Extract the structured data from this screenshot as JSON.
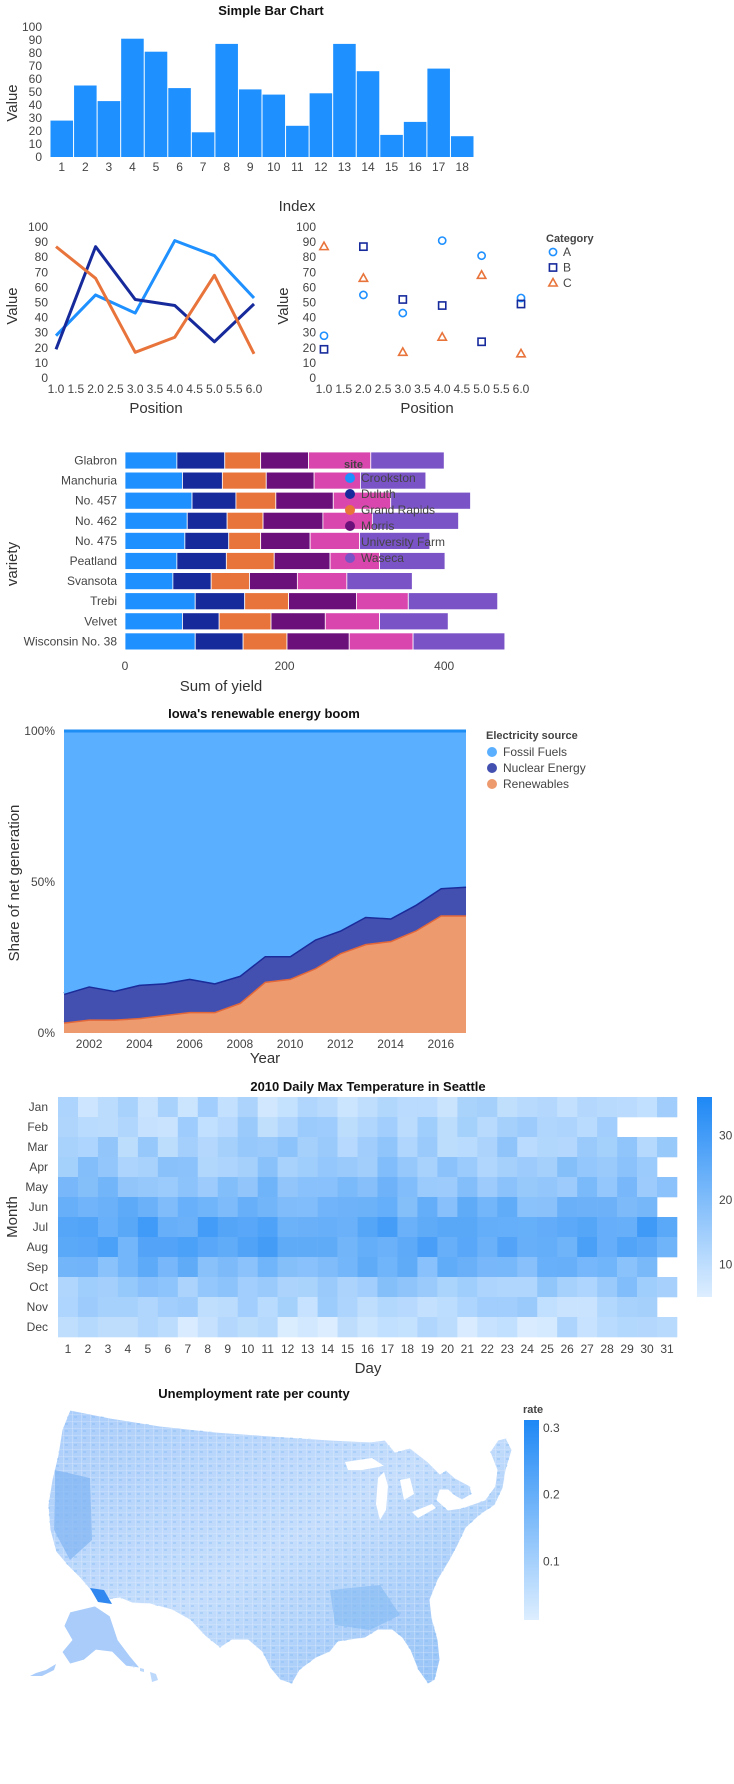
{
  "colors": {
    "primary": "#1e90ff",
    "navy": "#172a9c",
    "orange": "#e8743b",
    "purple": "#6b0f7a",
    "pink": "#d946ad",
    "violet": "#7a53c7",
    "lightblue": "#5aafff",
    "indigo": "#4450b0",
    "salmon": "#ee9a6f"
  },
  "chart_data": [
    {
      "id": "bar",
      "type": "bar",
      "title": "Simple Bar Chart",
      "xlabel": "Index",
      "ylabel": "Value",
      "ylim": [
        0,
        100
      ],
      "yticks": [
        "0",
        "10",
        "20",
        "30",
        "40",
        "50",
        "60",
        "70",
        "80",
        "90",
        "100"
      ],
      "categories": [
        "1",
        "2",
        "3",
        "4",
        "5",
        "6",
        "7",
        "8",
        "9",
        "10",
        "11",
        "12",
        "13",
        "14",
        "15",
        "16",
        "17",
        "18"
      ],
      "values": [
        28,
        55,
        43,
        91,
        81,
        53,
        19,
        87,
        52,
        48,
        24,
        49,
        87,
        66,
        17,
        27,
        68,
        16
      ]
    },
    {
      "id": "line",
      "type": "line",
      "xlabel": "Position",
      "ylabel": "Value",
      "ylim": [
        0,
        100
      ],
      "xlim": [
        1.0,
        6.0
      ],
      "xticks": [
        "1.0",
        "1.5",
        "2.0",
        "2.5",
        "3.0",
        "3.5",
        "4.0",
        "4.5",
        "5.0",
        "5.5",
        "6.0"
      ],
      "yticks": [
        "0",
        "10",
        "20",
        "30",
        "40",
        "50",
        "60",
        "70",
        "80",
        "90",
        "100"
      ],
      "x": [
        1,
        2,
        3,
        4,
        5,
        6
      ],
      "series": [
        {
          "color_key": "primary",
          "values": [
            28,
            55,
            43,
            91,
            81,
            53
          ]
        },
        {
          "color_key": "navy",
          "values": [
            19,
            87,
            52,
            48,
            24,
            49
          ]
        },
        {
          "color_key": "orange",
          "values": [
            87,
            66,
            17,
            27,
            68,
            16
          ]
        }
      ]
    },
    {
      "id": "scatter",
      "type": "scatter",
      "xlabel": "Position",
      "ylabel": "Value",
      "ylim": [
        0,
        100
      ],
      "xlim": [
        1.0,
        6.0
      ],
      "xticks": [
        "1.0",
        "1.5",
        "2.0",
        "2.5",
        "3.0",
        "3.5",
        "4.0",
        "4.5",
        "5.0",
        "5.5",
        "6.0"
      ],
      "yticks": [
        "0",
        "10",
        "20",
        "30",
        "40",
        "50",
        "60",
        "70",
        "80",
        "90",
        "100"
      ],
      "legend_title": "Category",
      "legend_position": "top-right",
      "x": [
        1,
        2,
        3,
        4,
        5,
        6
      ],
      "series": [
        {
          "name": "A",
          "shape": "circle",
          "color_key": "primary",
          "values": [
            28,
            55,
            43,
            91,
            81,
            53
          ]
        },
        {
          "name": "B",
          "shape": "square",
          "color_key": "navy",
          "values": [
            19,
            87,
            52,
            48,
            24,
            49
          ]
        },
        {
          "name": "C",
          "shape": "triangle",
          "color_key": "orange",
          "values": [
            87,
            66,
            17,
            27,
            68,
            16
          ]
        }
      ]
    },
    {
      "id": "stacked",
      "type": "bar",
      "orientation": "horizontal-stacked",
      "xlabel": "Sum of yield",
      "ylabel": "variety",
      "xlim": [
        0,
        480
      ],
      "xticks": [
        "0",
        "200",
        "400"
      ],
      "legend_title": "site",
      "legend_position": "right",
      "categories": [
        "Glabron",
        "Manchuria",
        "No. 457",
        "No. 462",
        "No. 475",
        "Peatland",
        "Svansota",
        "Trebi",
        "Velvet",
        "Wisconsin No. 38"
      ],
      "series": [
        {
          "name": "Crookston",
          "color_key": "primary",
          "values": [
            65,
            72,
            84,
            78,
            75,
            65,
            60,
            88,
            72,
            88
          ]
        },
        {
          "name": "Duluth",
          "color_key": "navy",
          "values": [
            60,
            50,
            55,
            50,
            55,
            62,
            48,
            62,
            46,
            60
          ]
        },
        {
          "name": "Grand Rapids",
          "color_key": "orange",
          "values": [
            45,
            55,
            50,
            45,
            40,
            60,
            48,
            55,
            65,
            55
          ]
        },
        {
          "name": "Morris",
          "color_key": "purple",
          "values": [
            60,
            60,
            72,
            75,
            62,
            70,
            60,
            85,
            68,
            78
          ]
        },
        {
          "name": "University Farm",
          "color_key": "pink",
          "values": [
            78,
            58,
            72,
            62,
            62,
            62,
            62,
            65,
            68,
            80
          ]
        },
        {
          "name": "Waseca",
          "color_key": "violet",
          "values": [
            92,
            82,
            100,
            108,
            88,
            82,
            82,
            112,
            86,
            115
          ]
        }
      ]
    },
    {
      "id": "area",
      "type": "area",
      "title": "Iowa's renewable energy boom",
      "xlabel": "Year",
      "ylabel": "Share of net generation",
      "ylim": [
        0,
        1
      ],
      "yticks": [
        "0%",
        "50%",
        "100%"
      ],
      "xticks": [
        "2002",
        "2004",
        "2006",
        "2008",
        "2010",
        "2012",
        "2014",
        "2016"
      ],
      "legend_title": "Electricity source",
      "legend_position": "top-right",
      "x": [
        2001,
        2002,
        2003,
        2004,
        2005,
        2006,
        2007,
        2008,
        2009,
        2010,
        2011,
        2012,
        2013,
        2014,
        2015,
        2016,
        2017
      ],
      "series": [
        {
          "name": "Fossil Fuels",
          "color_key": "lightblue",
          "values": [
            0.87,
            0.845,
            0.86,
            0.84,
            0.835,
            0.82,
            0.835,
            0.81,
            0.745,
            0.745,
            0.69,
            0.66,
            0.615,
            0.62,
            0.575,
            0.52,
            0.515
          ]
        },
        {
          "name": "Nuclear Energy",
          "color_key": "indigo",
          "values": [
            0.095,
            0.11,
            0.095,
            0.11,
            0.105,
            0.11,
            0.095,
            0.09,
            0.085,
            0.075,
            0.095,
            0.075,
            0.09,
            0.075,
            0.085,
            0.09,
            0.095
          ]
        },
        {
          "name": "Renewables",
          "color_key": "salmon",
          "values": [
            0.035,
            0.045,
            0.045,
            0.05,
            0.06,
            0.07,
            0.07,
            0.1,
            0.17,
            0.18,
            0.215,
            0.265,
            0.295,
            0.305,
            0.34,
            0.39,
            0.39
          ]
        }
      ]
    },
    {
      "id": "heatmap",
      "type": "heatmap",
      "title": "2010 Daily Max Temperature in Seattle",
      "xlabel": "Day",
      "ylabel": "Month",
      "rows": [
        "Jan",
        "Feb",
        "Mar",
        "Apr",
        "May",
        "Jun",
        "Jul",
        "Aug",
        "Sep",
        "Oct",
        "Nov",
        "Dec"
      ],
      "columns": [
        "1",
        "2",
        "3",
        "4",
        "5",
        "6",
        "7",
        "8",
        "9",
        "10",
        "11",
        "12",
        "13",
        "14",
        "15",
        "16",
        "17",
        "18",
        "19",
        "20",
        "21",
        "22",
        "23",
        "24",
        "25",
        "26",
        "27",
        "28",
        "29",
        "30",
        "31"
      ],
      "days_in_month": [
        31,
        28,
        31,
        30,
        31,
        30,
        31,
        31,
        30,
        31,
        30,
        31
      ],
      "month_base": [
        11,
        12,
        14,
        16,
        19,
        22,
        27,
        26,
        22,
        16,
        12,
        9
      ],
      "color_range": [
        5,
        36
      ],
      "colorbar_ticks": [
        "10",
        "20",
        "30"
      ]
    },
    {
      "id": "map",
      "type": "map",
      "title": "Unemployment rate per county",
      "legend_title": "rate",
      "color_range": [
        0,
        0.3
      ],
      "colorbar_ticks": [
        "0.1",
        "0.2",
        "0.3"
      ]
    }
  ]
}
